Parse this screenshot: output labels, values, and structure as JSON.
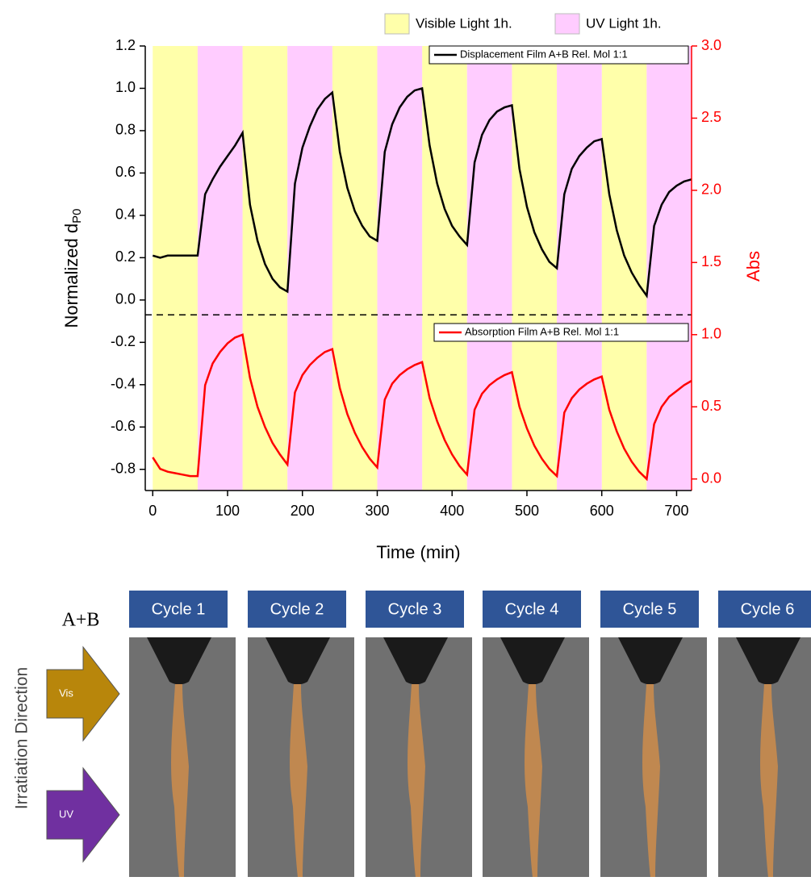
{
  "chart_data": {
    "type": "line",
    "xlabel": "Time (min)",
    "ylabel": "Normalized d",
    "ylabel_sub": "P0",
    "y2label": "Abs",
    "xlim": [
      -10,
      720
    ],
    "xticks": [
      0,
      100,
      200,
      300,
      400,
      500,
      600,
      700
    ],
    "ylim": [
      -0.9,
      1.2
    ],
    "yticks": [
      -0.8,
      -0.6,
      -0.4,
      -0.2,
      {
        "value": 0,
        "label": "0.0"
      },
      0.2,
      0.4,
      0.6,
      0.8,
      {
        "value": 1,
        "label": "1.0"
      },
      1.2
    ],
    "y2lim": [
      -0.08,
      3.0
    ],
    "y2ticks": [
      {
        "value": 0,
        "label": "0.0"
      },
      0.5,
      {
        "value": 1,
        "label": "1.0"
      },
      1.5,
      {
        "value": 2,
        "label": "2.0"
      },
      2.5,
      {
        "value": 3,
        "label": "3.0"
      }
    ],
    "hline": -0.07,
    "bands": [
      {
        "name": "Visible Light 1h.",
        "color": "#ffffaa",
        "intervals": [
          [
            0,
            60
          ],
          [
            120,
            180
          ],
          [
            240,
            300
          ],
          [
            360,
            420
          ],
          [
            480,
            540
          ],
          [
            600,
            660
          ]
        ]
      },
      {
        "name": "UV Light 1h.",
        "color": "#ffccff",
        "intervals": [
          [
            60,
            120
          ],
          [
            180,
            240
          ],
          [
            300,
            360
          ],
          [
            420,
            480
          ],
          [
            540,
            600
          ],
          [
            660,
            720
          ]
        ]
      }
    ],
    "x": [
      0,
      10,
      20,
      30,
      40,
      50,
      60,
      70,
      80,
      90,
      100,
      110,
      120,
      130,
      140,
      150,
      160,
      170,
      180,
      190,
      200,
      210,
      220,
      230,
      240,
      250,
      260,
      270,
      280,
      290,
      300,
      310,
      320,
      330,
      340,
      350,
      360,
      370,
      380,
      390,
      400,
      410,
      420,
      430,
      440,
      450,
      460,
      470,
      480,
      490,
      500,
      510,
      520,
      530,
      540,
      550,
      560,
      570,
      580,
      590,
      600,
      610,
      620,
      630,
      640,
      650,
      660,
      670,
      680,
      690,
      700,
      710,
      720
    ],
    "series": [
      {
        "name": "Displacement Film A+B Rel. Mol 1:1",
        "color": "#000000",
        "values": [
          0.21,
          0.2,
          0.21,
          0.21,
          0.21,
          0.21,
          0.21,
          0.5,
          0.57,
          0.63,
          0.68,
          0.73,
          0.79,
          0.45,
          0.28,
          0.17,
          0.1,
          0.06,
          0.04,
          0.55,
          0.72,
          0.82,
          0.9,
          0.95,
          0.98,
          0.7,
          0.53,
          0.42,
          0.35,
          0.3,
          0.28,
          0.7,
          0.83,
          0.91,
          0.96,
          0.99,
          1.0,
          0.73,
          0.55,
          0.43,
          0.35,
          0.3,
          0.26,
          0.65,
          0.78,
          0.85,
          0.89,
          0.91,
          0.92,
          0.62,
          0.44,
          0.32,
          0.24,
          0.18,
          0.15,
          0.5,
          0.62,
          0.68,
          0.72,
          0.75,
          0.76,
          0.5,
          0.33,
          0.21,
          0.13,
          0.07,
          0.02,
          0.35,
          0.45,
          0.51,
          0.54,
          0.56,
          0.57
        ]
      },
      {
        "name": "Absorption Film A+B Rel. Mol 1:1",
        "color": "#ff0000",
        "axis": "y2",
        "values": [
          0.15,
          0.07,
          0.05,
          0.04,
          0.03,
          0.02,
          0.02,
          0.65,
          0.8,
          0.88,
          0.94,
          0.98,
          1.0,
          0.7,
          0.5,
          0.36,
          0.25,
          0.17,
          0.1,
          0.6,
          0.72,
          0.79,
          0.84,
          0.88,
          0.9,
          0.63,
          0.45,
          0.32,
          0.22,
          0.14,
          0.08,
          0.55,
          0.66,
          0.72,
          0.76,
          0.79,
          0.81,
          0.56,
          0.4,
          0.27,
          0.17,
          0.09,
          0.03,
          0.48,
          0.59,
          0.65,
          0.69,
          0.72,
          0.74,
          0.5,
          0.35,
          0.23,
          0.14,
          0.07,
          0.02,
          0.46,
          0.56,
          0.62,
          0.66,
          0.69,
          0.71,
          0.48,
          0.33,
          0.21,
          0.12,
          0.05,
          0.0,
          0.38,
          0.5,
          0.57,
          0.61,
          0.65,
          0.68
        ]
      }
    ]
  },
  "photo_panel": {
    "sample": "A+B",
    "axis_label": "Irratiation Direction",
    "arrows": [
      "Vis",
      "UV"
    ],
    "cycles": [
      "Cycle 1",
      "Cycle 2",
      "Cycle 3",
      "Cycle 4",
      "Cycle 5",
      "Cycle 6"
    ]
  }
}
